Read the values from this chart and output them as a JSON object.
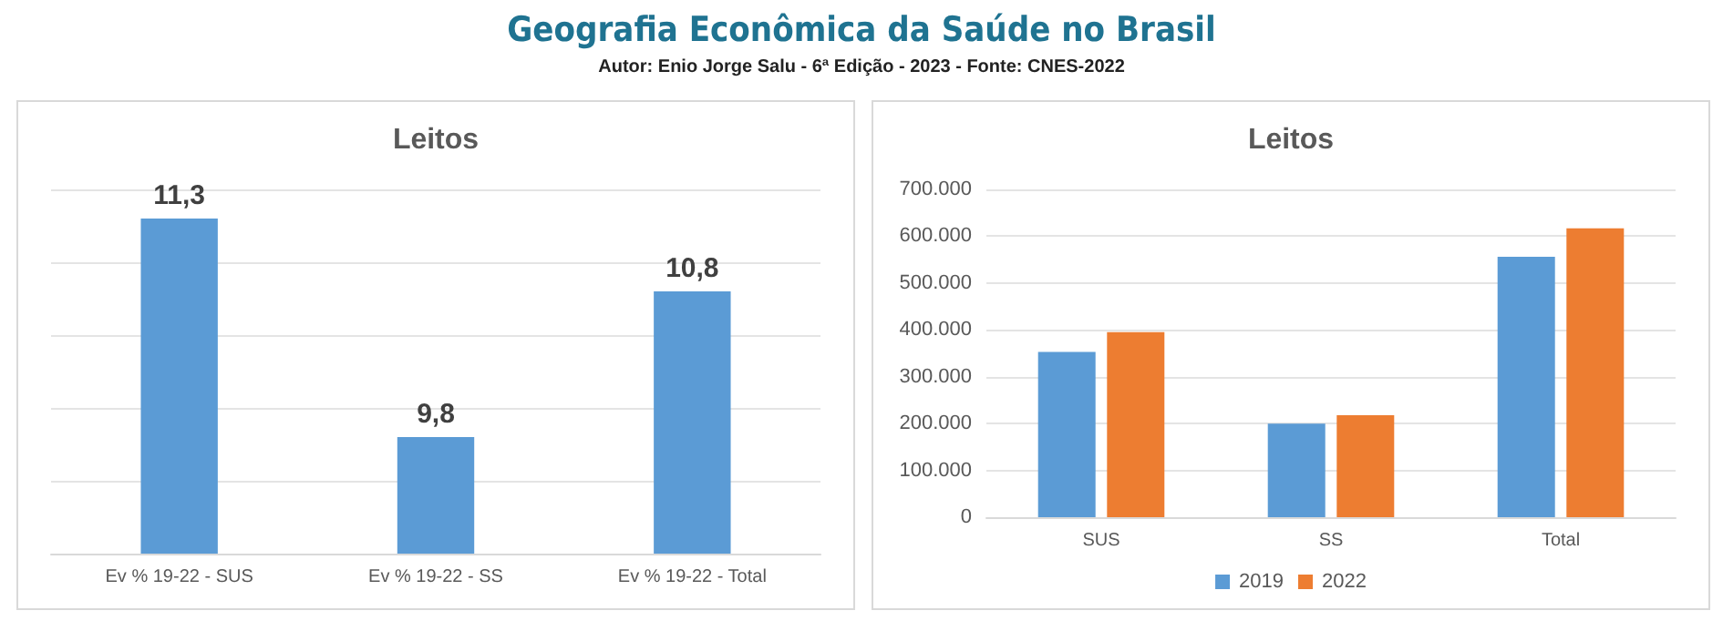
{
  "chart_data": [
    {
      "type": "other",
      "title": "Geografia Econômica da Saúde no Brasil",
      "subtitle": "Autor: Enio Jorge Salu - 6ª Edição - 2023 - Fonte: CNES-2022"
    },
    {
      "type": "bar",
      "title": "Leitos",
      "categories": [
        "Ev % 19-22 - SUS",
        "Ev % 19-22 - SS",
        "Ev % 19-22 - Total"
      ],
      "values": [
        11.3,
        9.8,
        10.8
      ],
      "value_labels": [
        "11,3",
        "9,8",
        "10,8"
      ],
      "color": "#5b9bd5",
      "ylim": [
        9,
        11.5
      ],
      "yticks": [
        {
          "value": 9,
          "label": null
        },
        {
          "value": 9.5,
          "label": null
        },
        {
          "value": 10,
          "label": null
        },
        {
          "value": 10.5,
          "label": null
        },
        {
          "value": 11,
          "label": null
        },
        {
          "value": 11.5,
          "label": null
        }
      ],
      "tick_labels": "x",
      "grid": "y",
      "legend": false
    },
    {
      "type": "bar",
      "title": "Leitos",
      "categories": [
        "SUS",
        "SS",
        "Total"
      ],
      "series": [
        {
          "name": "2019",
          "color": "#5b9bd5",
          "values": [
            353000,
            200000,
            556000
          ]
        },
        {
          "name": "2022",
          "color": "#ed7d31",
          "values": [
            395000,
            218000,
            617000
          ]
        }
      ],
      "ylim": [
        0,
        700000
      ],
      "yticks": [
        0,
        {
          "value": 100000,
          "label": "100.000"
        },
        {
          "value": 200000,
          "label": "200.000"
        },
        {
          "value": 300000,
          "label": "300.000"
        },
        {
          "value": 400000,
          "label": "400.000"
        },
        {
          "value": 500000,
          "label": "500.000"
        },
        {
          "value": 600000,
          "label": "600.000"
        },
        {
          "value": 700000,
          "label": "700.000"
        }
      ],
      "grid": "y",
      "legend": "bottom"
    }
  ]
}
